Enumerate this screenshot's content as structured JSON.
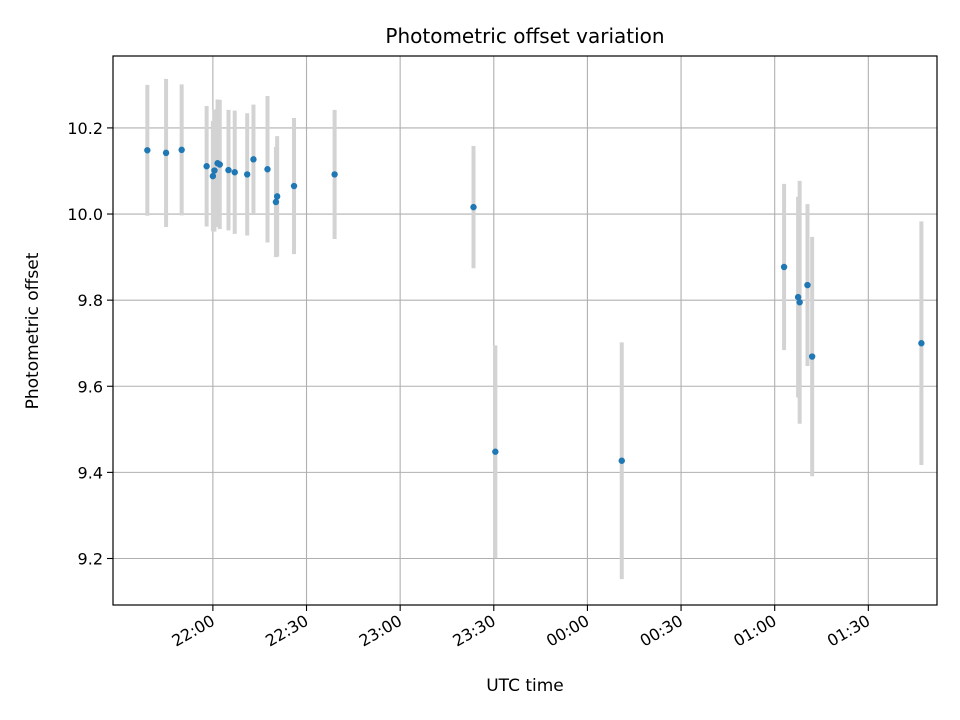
{
  "chart_data": {
    "type": "scatter",
    "title": "Photometric offset variation",
    "xlabel": "UTC time",
    "ylabel": "Photometric offset",
    "grid": true,
    "x_unit": "minutes since 21:00 UTC",
    "xlim": [
      28,
      292
    ],
    "ylim": [
      9.092,
      10.367
    ],
    "x_ticks": [
      {
        "value": 60,
        "label": "22:00"
      },
      {
        "value": 90,
        "label": "22:30"
      },
      {
        "value": 120,
        "label": "23:00"
      },
      {
        "value": 150,
        "label": "23:30"
      },
      {
        "value": 180,
        "label": "00:00"
      },
      {
        "value": 210,
        "label": "00:30"
      },
      {
        "value": 240,
        "label": "01:00"
      },
      {
        "value": 270,
        "label": "01:30"
      }
    ],
    "y_ticks": [
      {
        "value": 9.2,
        "label": "9.2"
      },
      {
        "value": 9.4,
        "label": "9.4"
      },
      {
        "value": 9.6,
        "label": "9.6"
      },
      {
        "value": 9.8,
        "label": "9.8"
      },
      {
        "value": 10.0,
        "label": "10.0"
      },
      {
        "value": 10.2,
        "label": "10.2"
      }
    ],
    "marker_color": "#1f77b4",
    "errorbar_color": "#d3d3d3",
    "points": [
      {
        "x": 39.0,
        "y": 10.148,
        "yerr": 0.152
      },
      {
        "x": 45.0,
        "y": 10.142,
        "yerr": 0.172
      },
      {
        "x": 50.0,
        "y": 10.149,
        "yerr": 0.152
      },
      {
        "x": 58.0,
        "y": 10.111,
        "yerr": 0.14
      },
      {
        "x": 60.0,
        "y": 10.088,
        "yerr": 0.128
      },
      {
        "x": 60.5,
        "y": 10.101,
        "yerr": 0.142
      },
      {
        "x": 61.5,
        "y": 10.118,
        "yerr": 0.148
      },
      {
        "x": 62.2,
        "y": 10.115,
        "yerr": 0.15
      },
      {
        "x": 65.0,
        "y": 10.102,
        "yerr": 0.14
      },
      {
        "x": 67.0,
        "y": 10.097,
        "yerr": 0.143
      },
      {
        "x": 71.0,
        "y": 10.092,
        "yerr": 0.142
      },
      {
        "x": 73.0,
        "y": 10.127,
        "yerr": 0.127
      },
      {
        "x": 77.5,
        "y": 10.104,
        "yerr": 0.17
      },
      {
        "x": 80.2,
        "y": 10.028,
        "yerr": 0.128
      },
      {
        "x": 80.6,
        "y": 10.041,
        "yerr": 0.14
      },
      {
        "x": 86.0,
        "y": 10.065,
        "yerr": 0.158
      },
      {
        "x": 99.0,
        "y": 10.092,
        "yerr": 0.15
      },
      {
        "x": 143.5,
        "y": 10.016,
        "yerr": 0.142
      },
      {
        "x": 150.5,
        "y": 9.448,
        "yerr": 0.247
      },
      {
        "x": 191.0,
        "y": 9.427,
        "yerr": 0.275
      },
      {
        "x": 243.0,
        "y": 9.877,
        "yerr": 0.193
      },
      {
        "x": 247.5,
        "y": 9.807,
        "yerr": 0.233
      },
      {
        "x": 248.0,
        "y": 9.795,
        "yerr": 0.282
      },
      {
        "x": 250.5,
        "y": 9.835,
        "yerr": 0.188
      },
      {
        "x": 252.0,
        "y": 9.669,
        "yerr": 0.278
      },
      {
        "x": 287.0,
        "y": 9.7,
        "yerr": 0.283
      }
    ]
  }
}
